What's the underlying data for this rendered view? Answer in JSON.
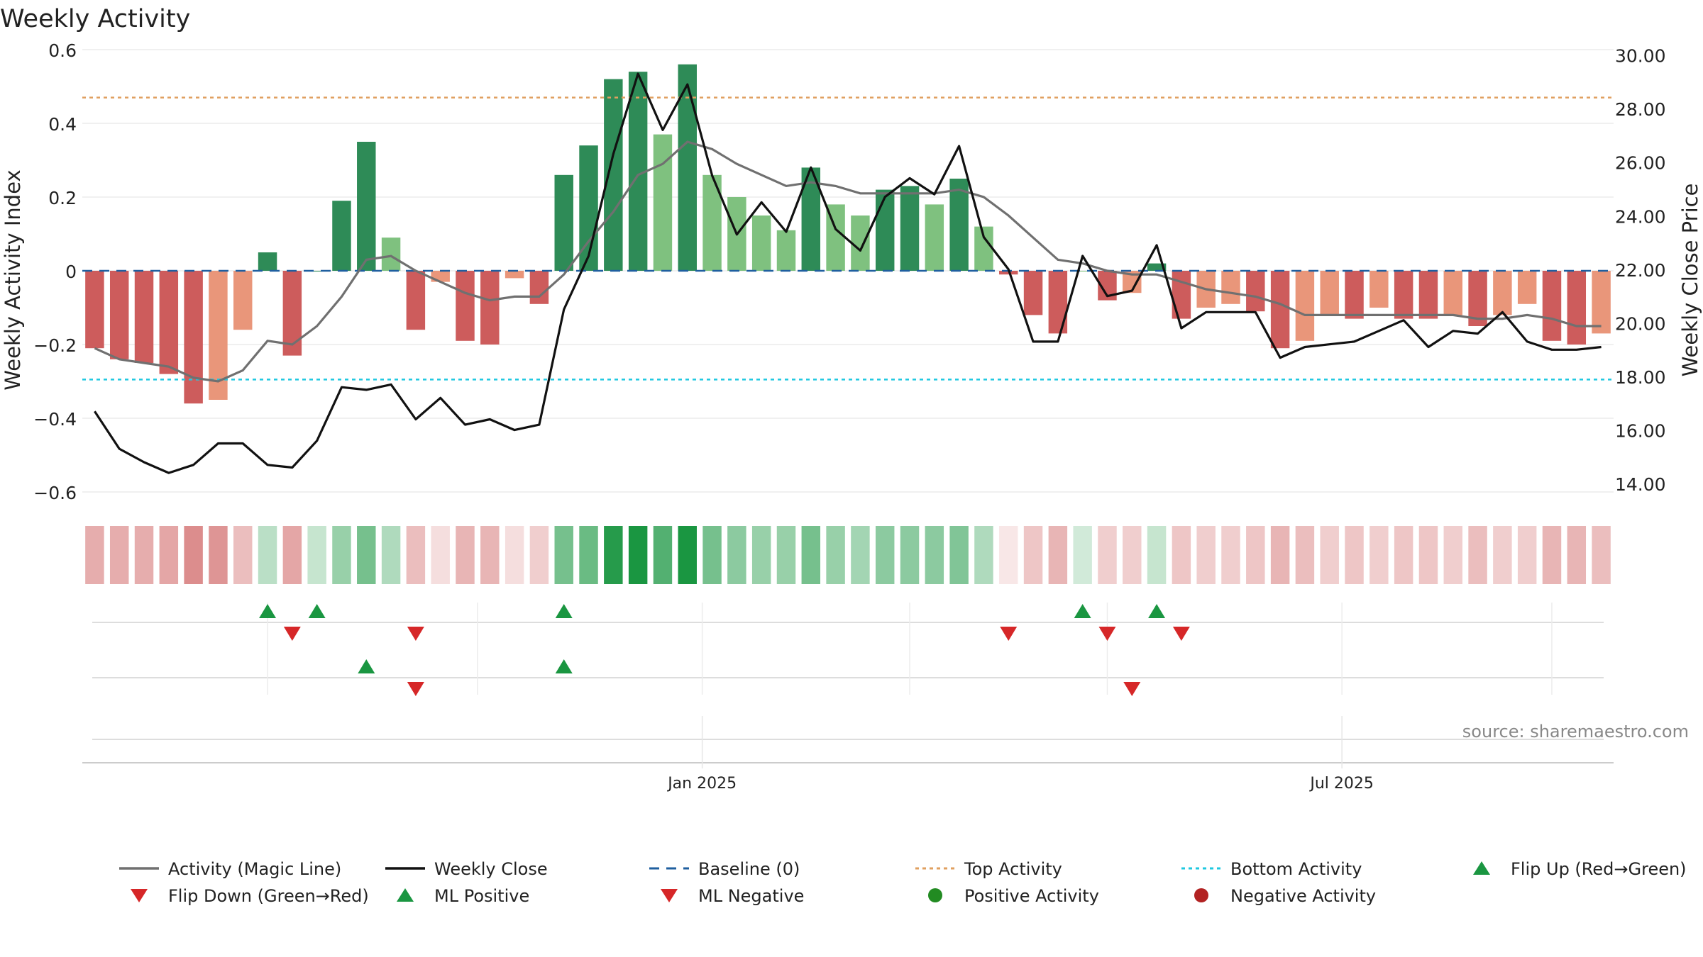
{
  "chart_data": {
    "type": "bar",
    "title": "Weekly Activity",
    "ylabel_left": "Weekly Activity Index",
    "ylabel_right": "Weekly Close Price",
    "ylim_left": [
      -0.65,
      0.6
    ],
    "ylim_right": [
      13.0,
      30.2
    ],
    "yticks_left": [
      {
        "v": 0.6,
        "label": "0.6"
      },
      {
        "v": 0.4,
        "label": "0.4"
      },
      {
        "v": 0.2,
        "label": "0.2"
      },
      {
        "v": 0,
        "label": "0"
      },
      {
        "v": -0.2,
        "label": "−0.2"
      },
      {
        "v": -0.4,
        "label": "−0.4"
      },
      {
        "v": -0.6,
        "label": "−0.6"
      }
    ],
    "yticks_right": [
      {
        "v": 30,
        "label": "30.00"
      },
      {
        "v": 28,
        "label": "28.00"
      },
      {
        "v": 26,
        "label": "26.00"
      },
      {
        "v": 24,
        "label": "24.00"
      },
      {
        "v": 22,
        "label": "22.00"
      },
      {
        "v": 20,
        "label": "20.00"
      },
      {
        "v": 18,
        "label": "18.00"
      },
      {
        "v": 16,
        "label": "16.00"
      },
      {
        "v": 14,
        "label": "14.00"
      }
    ],
    "xticks": [
      {
        "index": 24.6,
        "label": "Jan 2025"
      },
      {
        "index": 50.5,
        "label": "Jul 2025"
      }
    ],
    "top_activity": 0.47,
    "bottom_activity": -0.295,
    "baseline": 0,
    "colors": {
      "strong_pos": "#2e8b57",
      "weak_pos": "#7fc17f",
      "strong_neg": "#cd5c5c",
      "weak_neg": "#e9967a",
      "magic_line": "#707070",
      "close_line": "#111111",
      "baseline": "#1f5f9f",
      "top_line": "#e0a060",
      "bottom_line": "#1fc8e0",
      "flip_up": "#1a9641",
      "flip_down": "#d62728",
      "pos_dot": "#228b22",
      "neg_dot": "#b22222"
    },
    "activity": [
      -0.21,
      -0.24,
      -0.25,
      -0.28,
      -0.36,
      -0.35,
      -0.16,
      0.05,
      -0.23,
      0.0,
      0.19,
      0.35,
      0.09,
      -0.16,
      -0.03,
      -0.19,
      -0.2,
      -0.02,
      -0.09,
      0.26,
      0.34,
      0.52,
      0.54,
      0.37,
      0.56,
      0.26,
      0.2,
      0.15,
      0.11,
      0.28,
      0.18,
      0.15,
      0.22,
      0.23,
      0.18,
      0.25,
      0.12,
      -0.01,
      -0.12,
      -0.17,
      0.0,
      -0.08,
      -0.06,
      0.02,
      -0.13,
      -0.1,
      -0.09,
      -0.11,
      -0.21,
      -0.19,
      -0.12,
      -0.13,
      -0.1,
      -0.13,
      -0.13,
      -0.12,
      -0.15,
      -0.12,
      -0.09,
      -0.19,
      -0.2,
      -0.17
    ],
    "strength": [
      "s",
      "s",
      "s",
      "s",
      "s",
      "w",
      "w",
      "s",
      "s",
      "s",
      "s",
      "s",
      "w",
      "s",
      "w",
      "s",
      "s",
      "w",
      "s",
      "s",
      "s",
      "s",
      "s",
      "w",
      "s",
      "w",
      "w",
      "w",
      "w",
      "s",
      "w",
      "w",
      "s",
      "s",
      "w",
      "s",
      "w",
      "s",
      "s",
      "s",
      "w",
      "s",
      "w",
      "s",
      "s",
      "w",
      "w",
      "s",
      "s",
      "w",
      "w",
      "s",
      "w",
      "s",
      "s",
      "w",
      "s",
      "w",
      "w",
      "s",
      "s",
      "w"
    ],
    "magic_line": [
      -0.21,
      -0.24,
      -0.25,
      -0.26,
      -0.29,
      -0.3,
      -0.27,
      -0.19,
      -0.2,
      -0.15,
      -0.07,
      0.03,
      0.04,
      0.0,
      -0.03,
      -0.06,
      -0.08,
      -0.07,
      -0.07,
      -0.01,
      0.08,
      0.16,
      0.26,
      0.29,
      0.35,
      0.33,
      0.29,
      0.26,
      0.23,
      0.24,
      0.23,
      0.21,
      0.21,
      0.21,
      0.21,
      0.22,
      0.2,
      0.15,
      0.09,
      0.03,
      0.02,
      0.0,
      -0.01,
      -0.01,
      -0.03,
      -0.05,
      -0.06,
      -0.07,
      -0.09,
      -0.12,
      -0.12,
      -0.12,
      -0.12,
      -0.12,
      -0.12,
      -0.12,
      -0.13,
      -0.13,
      -0.12,
      -0.13,
      -0.15,
      -0.15
    ],
    "weekly_close": [
      16.7,
      15.3,
      14.8,
      14.4,
      14.7,
      15.5,
      15.5,
      14.7,
      14.6,
      15.6,
      17.6,
      17.5,
      17.7,
      16.4,
      17.2,
      16.2,
      16.4,
      16.0,
      16.2,
      20.5,
      22.5,
      26.3,
      29.3,
      27.2,
      28.9,
      25.5,
      23.3,
      24.5,
      23.4,
      25.8,
      23.5,
      22.7,
      24.7,
      25.4,
      24.8,
      26.6,
      23.2,
      22.0,
      19.3,
      19.3,
      22.5,
      21.0,
      21.2,
      22.9,
      19.8,
      20.4,
      20.4,
      20.4,
      18.7,
      19.1,
      19.2,
      19.3,
      19.7,
      20.1,
      19.1,
      19.7,
      19.6,
      20.4,
      19.3,
      19.0,
      19.0,
      19.1
    ],
    "heat_alpha": [
      0.5,
      0.5,
      0.5,
      0.55,
      0.7,
      0.65,
      0.4,
      0.3,
      0.55,
      0.25,
      0.45,
      0.6,
      0.35,
      0.4,
      0.2,
      0.45,
      0.45,
      0.2,
      0.3,
      0.6,
      0.65,
      0.95,
      1.0,
      0.75,
      1.0,
      0.6,
      0.5,
      0.45,
      0.45,
      0.6,
      0.45,
      0.4,
      0.5,
      0.5,
      0.5,
      0.55,
      0.35,
      0.15,
      0.35,
      0.45,
      0.2,
      0.3,
      0.3,
      0.25,
      0.35,
      0.3,
      0.3,
      0.35,
      0.45,
      0.4,
      0.3,
      0.35,
      0.3,
      0.35,
      0.35,
      0.3,
      0.4,
      0.3,
      0.3,
      0.45,
      0.45,
      0.4
    ],
    "flip_up": [
      7,
      9,
      19,
      40,
      43
    ],
    "flip_down": [
      8,
      13,
      37,
      41,
      44
    ],
    "ml_positive": [
      11,
      19
    ],
    "ml_negative": [
      13,
      42
    ],
    "source_label": "source: sharemaestro.com",
    "legend": [
      {
        "label": "Activity (Magic Line)",
        "kind": "line",
        "color": "#707070"
      },
      {
        "label": "Weekly Close",
        "kind": "line",
        "color": "#111111"
      },
      {
        "label": "Baseline (0)",
        "kind": "dash",
        "color": "#1f5f9f"
      },
      {
        "label": "Top Activity",
        "kind": "dot",
        "color": "#e0a060"
      },
      {
        "label": "Bottom Activity",
        "kind": "dot",
        "color": "#1fc8e0"
      },
      {
        "label": "Flip Up (Red→Green)",
        "kind": "tri-up",
        "color": "#1a9641"
      },
      {
        "label": "Flip Down (Green→Red)",
        "kind": "tri-down",
        "color": "#d62728"
      },
      {
        "label": "ML Positive",
        "kind": "tri-up",
        "color": "#1a9641"
      },
      {
        "label": "ML Negative",
        "kind": "tri-down",
        "color": "#d62728"
      },
      {
        "label": "Positive Activity",
        "kind": "circle",
        "color": "#228b22"
      },
      {
        "label": "Negative Activity",
        "kind": "circle",
        "color": "#b22222"
      }
    ]
  }
}
